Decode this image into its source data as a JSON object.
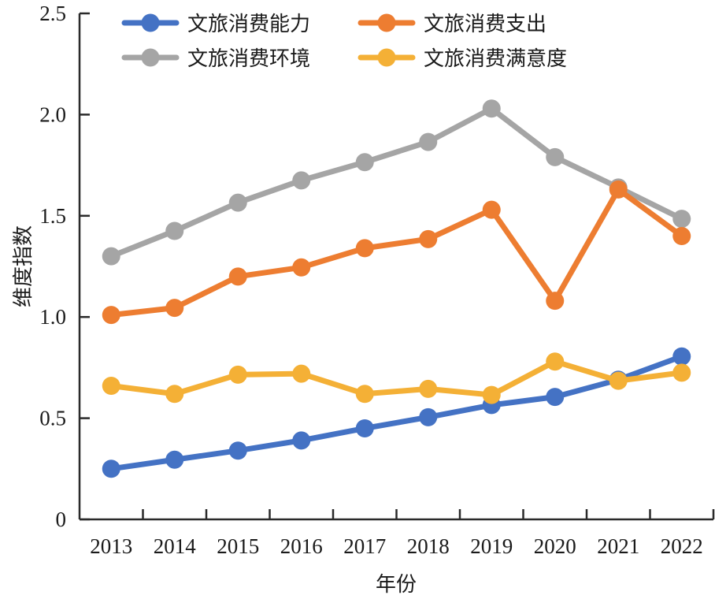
{
  "chart_data": {
    "type": "line",
    "title": "",
    "xlabel": "年份",
    "ylabel": "维度指数",
    "x": [
      "2013",
      "2014",
      "2015",
      "2016",
      "2017",
      "2018",
      "2019",
      "2020",
      "2021",
      "2022"
    ],
    "ylim": [
      0,
      2.5
    ],
    "yticks": [
      0,
      0.5,
      1.0,
      1.5,
      2.0,
      2.5
    ],
    "ytick_labels": [
      "0",
      "0.5",
      "1.0",
      "1.5",
      "2.0",
      "2.5"
    ],
    "grid": false,
    "legend_position": "top",
    "series": [
      {
        "name": "文旅消费能力",
        "color": "#4472C4",
        "values": [
          0.25,
          0.295,
          0.34,
          0.39,
          0.45,
          0.505,
          0.565,
          0.605,
          0.69,
          0.805
        ]
      },
      {
        "name": "文旅消费支出",
        "color": "#ED7D31",
        "values": [
          1.01,
          1.045,
          1.2,
          1.245,
          1.34,
          1.385,
          1.53,
          1.08,
          1.63,
          1.4
        ]
      },
      {
        "name": "文旅消费环境",
        "color": "#A5A5A5",
        "values": [
          1.3,
          1.425,
          1.565,
          1.675,
          1.765,
          1.865,
          2.03,
          1.79,
          1.64,
          1.485
        ]
      },
      {
        "name": "文旅消费满意度",
        "color": "#F4B036",
        "values": [
          0.66,
          0.62,
          0.715,
          0.72,
          0.62,
          0.645,
          0.615,
          0.78,
          0.685,
          0.725
        ]
      }
    ]
  }
}
